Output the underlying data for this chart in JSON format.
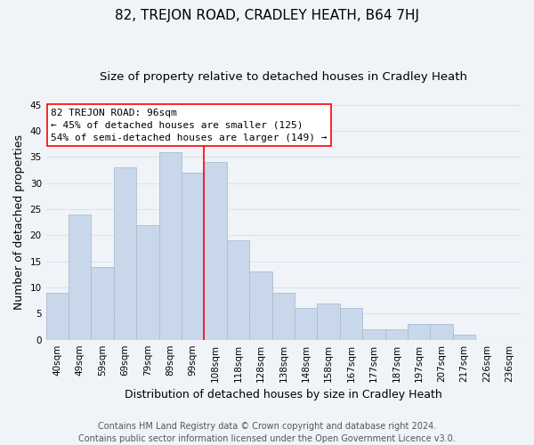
{
  "title": "82, TREJON ROAD, CRADLEY HEATH, B64 7HJ",
  "subtitle": "Size of property relative to detached houses in Cradley Heath",
  "xlabel": "Distribution of detached houses by size in Cradley Heath",
  "ylabel": "Number of detached properties",
  "footer_line1": "Contains HM Land Registry data © Crown copyright and database right 2024.",
  "footer_line2": "Contains public sector information licensed under the Open Government Licence v3.0.",
  "bar_labels": [
    "40sqm",
    "49sqm",
    "59sqm",
    "69sqm",
    "79sqm",
    "89sqm",
    "99sqm",
    "108sqm",
    "118sqm",
    "128sqm",
    "138sqm",
    "148sqm",
    "158sqm",
    "167sqm",
    "177sqm",
    "187sqm",
    "197sqm",
    "207sqm",
    "217sqm",
    "226sqm",
    "236sqm"
  ],
  "bar_values": [
    9,
    24,
    14,
    33,
    22,
    36,
    32,
    34,
    19,
    13,
    9,
    6,
    7,
    6,
    2,
    2,
    3,
    3,
    1,
    0,
    0
  ],
  "bar_color": "#c8d8ea",
  "bar_edgecolor": "#aabdd0",
  "vline_x": 6.5,
  "vline_color": "red",
  "annotation_title": "82 TREJON ROAD: 96sqm",
  "annotation_line2": "← 45% of detached houses are smaller (125)",
  "annotation_line3": "54% of semi-detached houses are larger (149) →",
  "annotation_box_facecolor": "white",
  "annotation_box_edgecolor": "red",
  "ylim": [
    0,
    45
  ],
  "yticks": [
    0,
    5,
    10,
    15,
    20,
    25,
    30,
    35,
    40,
    45
  ],
  "background_color": "#f0f4f8",
  "grid_color": "#d8e4ef",
  "title_fontsize": 11,
  "subtitle_fontsize": 9.5,
  "axis_label_fontsize": 9,
  "tick_fontsize": 7.5,
  "footer_fontsize": 7
}
